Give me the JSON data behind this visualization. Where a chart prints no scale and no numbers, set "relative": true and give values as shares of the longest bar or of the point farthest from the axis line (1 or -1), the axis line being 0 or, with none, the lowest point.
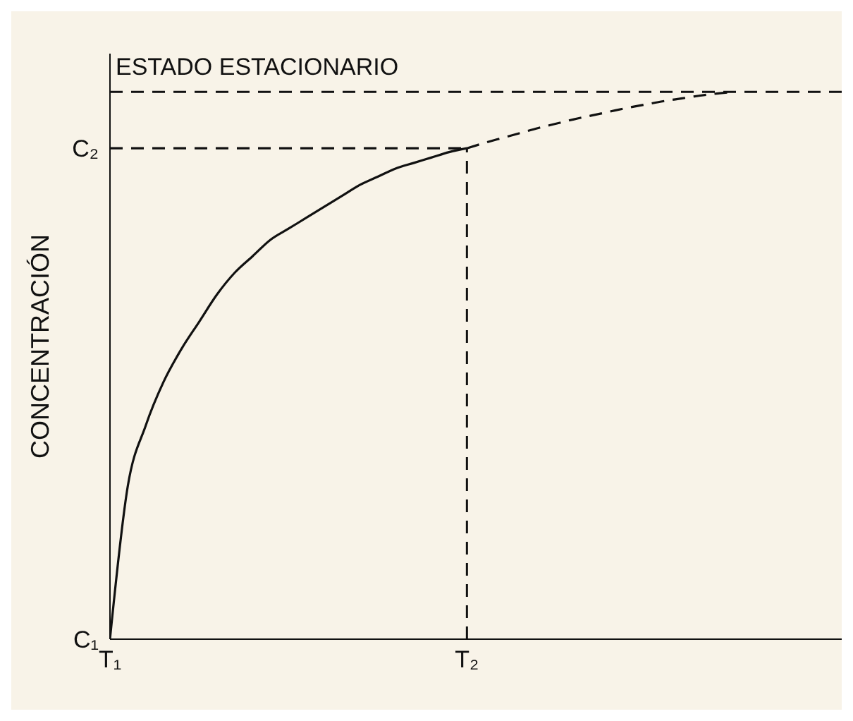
{
  "chart_data": {
    "type": "line",
    "relative": true,
    "ylabel": "CONCENTRACIÓN",
    "categories": [
      "T₁",
      null,
      null,
      null,
      null,
      null,
      null,
      null,
      null,
      null,
      null,
      null,
      null,
      null,
      null,
      null,
      null,
      null,
      null,
      null,
      "T₂",
      null,
      null,
      null,
      null,
      null,
      null,
      null,
      null,
      null,
      null,
      null,
      null,
      null,
      null,
      null,
      null,
      null,
      null,
      null,
      null,
      null
    ],
    "grid": false,
    "legend": false,
    "marker": "none",
    "series": [
      {
        "color": "#111111",
        "line_style": "solid",
        "values": [
          0,
          0.28,
          0.39,
          0.47,
          0.53,
          0.58,
          0.63,
          0.67,
          0.7,
          0.73,
          0.75,
          0.77,
          0.79,
          0.81,
          0.83,
          0.845,
          0.86,
          0.87,
          0.88,
          0.89,
          0.897,
          null,
          null,
          null,
          null,
          null,
          null,
          null,
          null,
          null,
          null,
          null,
          null,
          null,
          null,
          null,
          null,
          null,
          null,
          null,
          null,
          null
        ]
      },
      {
        "color": "#111111",
        "line_style": "dashed",
        "values": [
          null,
          null,
          null,
          null,
          null,
          null,
          null,
          null,
          null,
          null,
          null,
          null,
          null,
          null,
          null,
          null,
          null,
          null,
          null,
          null,
          0.897,
          0.907,
          0.916,
          0.925,
          0.934,
          0.942,
          0.95,
          0.957,
          0.964,
          0.971,
          0.977,
          0.983,
          0.988,
          0.993,
          0.997,
          1,
          null,
          null,
          null,
          null,
          null,
          null
        ]
      },
      {
        "color": "#111111",
        "line_style": "dashed",
        "values": [
          0.897,
          0.897,
          0.897,
          0.897,
          0.897,
          0.897,
          0.897,
          0.897,
          0.897,
          0.897,
          0.897,
          0.897,
          0.897,
          0.897,
          0.897,
          0.897,
          0.897,
          0.897,
          0.897,
          0.897,
          0.897,
          null,
          null,
          null,
          null,
          null,
          null,
          null,
          null,
          null,
          null,
          null,
          null,
          null,
          null,
          null,
          null,
          null,
          null,
          null,
          null,
          null
        ]
      }
    ],
    "ref_lines": [
      {
        "axis": "y",
        "value": 1,
        "label": "ESTADO ESTACIONARIO",
        "color": "#111111",
        "line_style": "dashed"
      },
      {
        "axis": "x",
        "value": "T₂",
        "color": "#111111",
        "line_style": "dashed"
      }
    ],
    "annotations": [
      "C₁",
      "C₂"
    ]
  }
}
